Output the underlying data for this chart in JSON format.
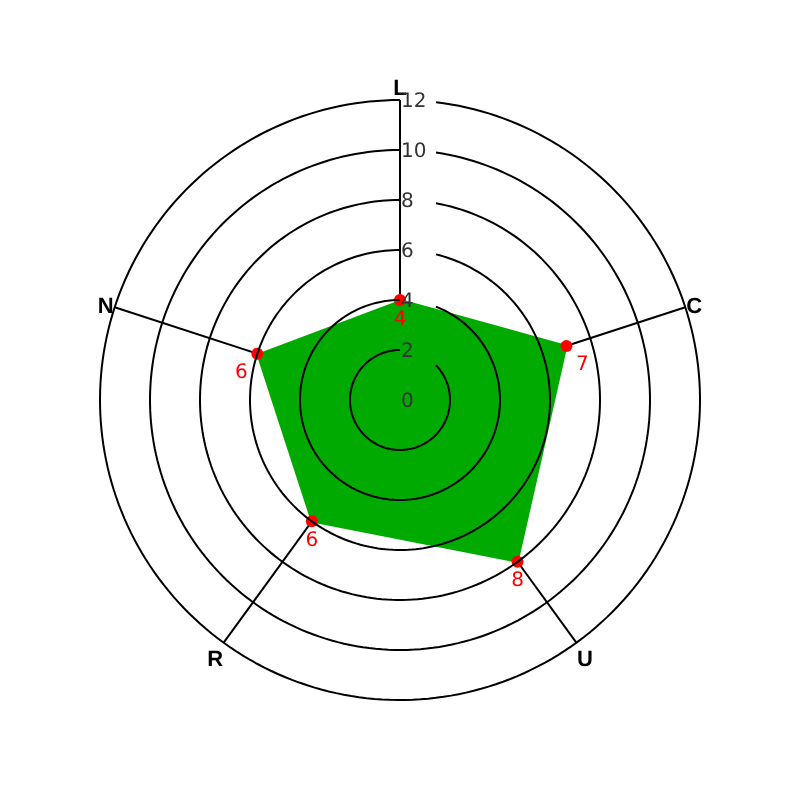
{
  "chart_data": {
    "type": "radar",
    "categories": [
      "L",
      "C",
      "U",
      "R",
      "N"
    ],
    "series": [
      {
        "color": "#00aa00",
        "colors": [
          "#ff0000",
          "#ff0000",
          "#ff0000",
          "#ff0000",
          "#ff0000"
        ],
        "values": [
          4,
          7,
          8,
          6,
          6
        ]
      }
    ],
    "ylim": [
      0,
      12
    ],
    "yticks": [
      0,
      2,
      4,
      6,
      8,
      10,
      12
    ],
    "grid": true,
    "marker": "circle",
    "data_labels": true
  }
}
